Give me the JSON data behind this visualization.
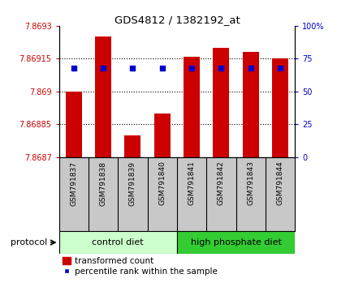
{
  "title": "GDS4812 / 1382192_at",
  "samples": [
    "GSM791837",
    "GSM791838",
    "GSM791839",
    "GSM791840",
    "GSM791841",
    "GSM791842",
    "GSM791843",
    "GSM791844"
  ],
  "transformed_counts": [
    7.869,
    7.86925,
    7.8688,
    7.8689,
    7.86916,
    7.8692,
    7.86918,
    7.86915
  ],
  "percentile_ranks": [
    68,
    68,
    68,
    68,
    68,
    68,
    68,
    68
  ],
  "ymin": 7.8687,
  "ymax": 7.8693,
  "yticks": [
    7.8687,
    7.86885,
    7.869,
    7.86915,
    7.8693
  ],
  "ytick_labels": [
    "7.8687",
    "7.86885",
    "7.869",
    "7.86915",
    "7.8693"
  ],
  "y2min": 0,
  "y2max": 100,
  "y2ticks": [
    0,
    25,
    50,
    75,
    100
  ],
  "y2tick_labels": [
    "0",
    "25",
    "50",
    "75",
    "100%"
  ],
  "bar_color": "#CC0000",
  "dot_color": "#0000CC",
  "groups": [
    {
      "label": "control diet",
      "color": "#ccffcc",
      "indices": [
        0,
        1,
        2,
        3
      ]
    },
    {
      "label": "high phosphate diet",
      "color": "#33cc33",
      "indices": [
        4,
        5,
        6,
        7
      ]
    }
  ],
  "protocol_label": "protocol",
  "legend_bar_label": "transformed count",
  "legend_dot_label": "percentile rank within the sample",
  "tick_label_color_left": "#CC0000",
  "tick_label_color_right": "#0000CC",
  "bar_bottom": 7.8687,
  "xtick_bg": "#c8c8c8"
}
